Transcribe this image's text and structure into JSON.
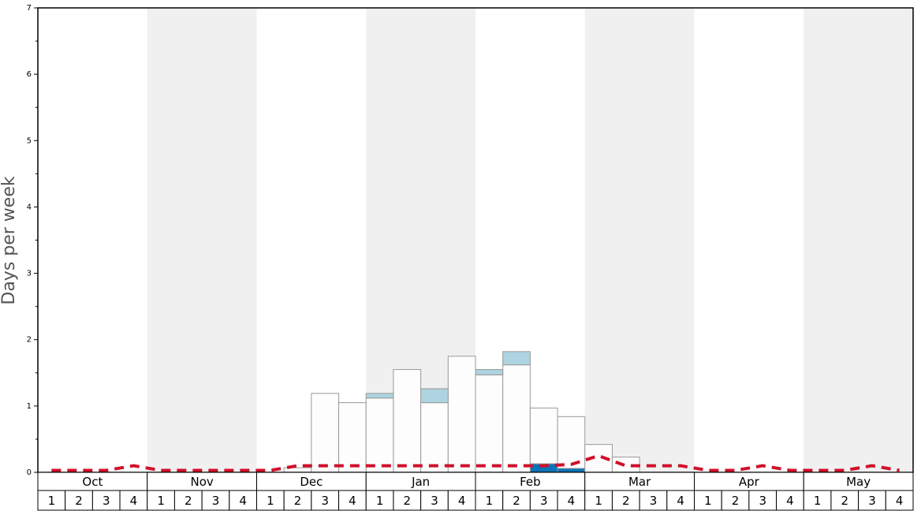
{
  "chart_data": {
    "type": "stacked-bar",
    "y_label": "Days per week",
    "months": [
      "Oct",
      "Nov",
      "Dec",
      "Jan",
      "Feb",
      "Mar",
      "Apr",
      "May"
    ],
    "categories": [
      "1",
      "2",
      "3",
      "4",
      "1",
      "2",
      "3",
      "4",
      "1",
      "2",
      "3",
      "4",
      "1",
      "2",
      "3",
      "4",
      "1",
      "2",
      "3",
      "4",
      "1",
      "2",
      "3",
      "4",
      "1",
      "2",
      "3",
      "4",
      "1",
      "2",
      "3",
      "4"
    ],
    "series": [
      {
        "color": "#0a74b8",
        "values": [
          null,
          null,
          null,
          null,
          null,
          null,
          null,
          null,
          null,
          null,
          null,
          null,
          null,
          null,
          null,
          null,
          null,
          null,
          0.13,
          0.06,
          null,
          null,
          null,
          null,
          null,
          null,
          null,
          null,
          null,
          null,
          null,
          null
        ]
      },
      {
        "color": "#fdfdfd",
        "values": [
          null,
          null,
          null,
          null,
          null,
          null,
          null,
          null,
          null,
          0.07,
          1.19,
          1.05,
          1.12,
          1.55,
          1.05,
          1.75,
          1.47,
          1.62,
          0.84,
          0.78,
          0.42,
          0.23,
          null,
          null,
          null,
          null,
          null,
          null,
          null,
          null,
          null,
          null
        ]
      },
      {
        "color": "#add4e0",
        "values": [
          null,
          null,
          null,
          null,
          null,
          null,
          null,
          null,
          null,
          null,
          null,
          null,
          0.07,
          null,
          0.21,
          null,
          0.08,
          0.2,
          null,
          null,
          null,
          null,
          null,
          null,
          null,
          null,
          null,
          null,
          null,
          null,
          null,
          null
        ]
      }
    ],
    "line": {
      "color": "#d0102a",
      "values": [
        0.03,
        0.03,
        0.03,
        0.1,
        0.03,
        0.03,
        0.03,
        0.03,
        0.03,
        0.1,
        0.1,
        0.1,
        0.1,
        0.1,
        0.1,
        0.1,
        0.1,
        0.1,
        0.1,
        0.12,
        0.25,
        0.1,
        0.1,
        0.1,
        0.03,
        0.03,
        0.1,
        0.03,
        0.03,
        0.03,
        0.1,
        0.03
      ]
    },
    "ylim": [
      0,
      7
    ],
    "yticks": [
      0,
      1,
      2,
      3,
      4,
      5,
      6,
      7
    ],
    "yminor_ticks": [
      0.5,
      1.5,
      2.5,
      3.5,
      4.5,
      5.5,
      6.5
    ],
    "band_color": "#f0f0f0"
  }
}
